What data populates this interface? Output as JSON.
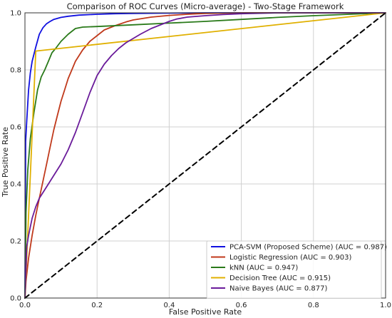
{
  "chart_data": {
    "type": "line",
    "title": "Comparison of ROC Curves (Micro-average) - Two-Stage Framework",
    "xlabel": "False Positive Rate",
    "ylabel": "True Positive Rate",
    "xlim": [
      0.0,
      1.0
    ],
    "ylim": [
      0.0,
      1.0
    ],
    "xticks": [
      "0.0",
      "0.2",
      "0.4",
      "0.6",
      "0.8",
      "1.0"
    ],
    "yticks": [
      "0.0",
      "0.2",
      "0.4",
      "0.6",
      "0.8",
      "1.0"
    ],
    "grid": true,
    "legend_position": "lower-right",
    "series": [
      {
        "name": "PCA-SVM (Proposed Scheme) (AUC = 0.987)",
        "color": "#1010e0",
        "x": [
          0,
          0.002,
          0.005,
          0.01,
          0.015,
          0.02,
          0.03,
          0.04,
          0.05,
          0.06,
          0.07,
          0.08,
          0.1,
          0.12,
          0.15,
          0.2,
          0.25,
          0.3,
          0.4,
          0.5,
          1.0
        ],
        "y": [
          0,
          0.55,
          0.62,
          0.73,
          0.79,
          0.83,
          0.88,
          0.925,
          0.948,
          0.962,
          0.97,
          0.977,
          0.984,
          0.988,
          0.992,
          0.995,
          0.997,
          0.998,
          0.999,
          1.0,
          1.0
        ]
      },
      {
        "name": "Logistic Regression (AUC = 0.903)",
        "color": "#c0391b",
        "x": [
          0,
          0.003,
          0.01,
          0.02,
          0.03,
          0.04,
          0.05,
          0.06,
          0.07,
          0.08,
          0.09,
          0.1,
          0.11,
          0.12,
          0.13,
          0.14,
          0.15,
          0.16,
          0.18,
          0.2,
          0.22,
          0.25,
          0.28,
          0.3,
          0.35,
          0.4,
          0.45,
          0.5,
          0.6,
          1.0
        ],
        "y": [
          0,
          0.06,
          0.14,
          0.22,
          0.29,
          0.35,
          0.41,
          0.47,
          0.53,
          0.59,
          0.64,
          0.69,
          0.73,
          0.77,
          0.8,
          0.83,
          0.85,
          0.87,
          0.9,
          0.92,
          0.94,
          0.955,
          0.968,
          0.975,
          0.985,
          0.991,
          0.995,
          0.998,
          1.0,
          1.0
        ]
      },
      {
        "name": "kNN (AUC = 0.947)",
        "color": "#2a7a1a",
        "x": [
          0,
          0.003,
          0.008,
          0.015,
          0.025,
          0.035,
          0.045,
          0.055,
          0.065,
          0.075,
          0.085,
          0.1,
          0.12,
          0.14,
          0.16,
          0.2,
          0.3,
          0.4,
          0.5,
          0.6,
          0.7,
          0.8,
          0.9,
          1.0
        ],
        "y": [
          0,
          0.3,
          0.45,
          0.56,
          0.65,
          0.73,
          0.775,
          0.8,
          0.83,
          0.86,
          0.875,
          0.9,
          0.925,
          0.945,
          0.95,
          0.952,
          0.958,
          0.964,
          0.97,
          0.977,
          0.984,
          0.99,
          0.995,
          1.0
        ]
      },
      {
        "name": "Decision Tree (AUC = 0.915)",
        "color": "#e0b000",
        "x": [
          0,
          0.03,
          1.0
        ],
        "y": [
          0,
          0.866,
          1.0
        ]
      },
      {
        "name": "Naive Bayes (AUC = 0.877)",
        "color": "#6a1b9a",
        "x": [
          0,
          0.005,
          0.01,
          0.02,
          0.03,
          0.04,
          0.05,
          0.06,
          0.08,
          0.1,
          0.12,
          0.14,
          0.16,
          0.18,
          0.2,
          0.22,
          0.24,
          0.26,
          0.28,
          0.3,
          0.32,
          0.35,
          0.38,
          0.4,
          0.42,
          0.45,
          0.5,
          0.55,
          0.6,
          0.7,
          1.0
        ],
        "y": [
          0,
          0.18,
          0.22,
          0.28,
          0.32,
          0.35,
          0.37,
          0.39,
          0.43,
          0.47,
          0.52,
          0.58,
          0.65,
          0.72,
          0.78,
          0.82,
          0.85,
          0.875,
          0.895,
          0.91,
          0.925,
          0.945,
          0.96,
          0.97,
          0.978,
          0.985,
          0.99,
          0.994,
          0.997,
          1.0,
          1.0
        ]
      },
      {
        "name": "",
        "color": "#000000",
        "dashed": true,
        "x": [
          0,
          1
        ],
        "y": [
          0,
          1
        ]
      }
    ]
  }
}
